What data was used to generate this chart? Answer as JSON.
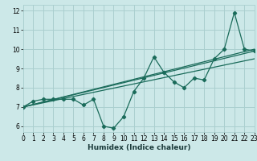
{
  "xlabel": "Humidex (Indice chaleur)",
  "bg_color": "#cce8e8",
  "grid_color": "#aacfcf",
  "line_color": "#1a6b5a",
  "x_data": [
    0,
    1,
    2,
    3,
    4,
    5,
    6,
    7,
    8,
    9,
    10,
    11,
    12,
    13,
    14,
    15,
    16,
    17,
    18,
    19,
    20,
    21,
    22,
    23
  ],
  "y_main": [
    7.0,
    7.3,
    7.4,
    7.4,
    7.4,
    7.4,
    7.1,
    7.4,
    6.0,
    5.9,
    6.5,
    7.8,
    8.5,
    9.6,
    8.8,
    8.3,
    8.0,
    8.5,
    8.4,
    9.5,
    10.0,
    11.9,
    10.0,
    9.9
  ],
  "trend1_x": [
    0,
    23
  ],
  "trend1_y": [
    7.0,
    10.0
  ],
  "trend2_x": [
    0,
    23
  ],
  "trend2_y": [
    7.0,
    9.9
  ],
  "trend3_x": [
    0,
    23
  ],
  "trend3_y": [
    7.0,
    9.5
  ],
  "xlim": [
    0,
    23
  ],
  "ylim": [
    5.7,
    12.3
  ],
  "yticks": [
    6,
    7,
    8,
    9,
    10,
    11,
    12
  ],
  "xticks": [
    0,
    1,
    2,
    3,
    4,
    5,
    6,
    7,
    8,
    9,
    10,
    11,
    12,
    13,
    14,
    15,
    16,
    17,
    18,
    19,
    20,
    21,
    22,
    23
  ],
  "tick_fontsize": 5.5,
  "xlabel_fontsize": 6.5
}
